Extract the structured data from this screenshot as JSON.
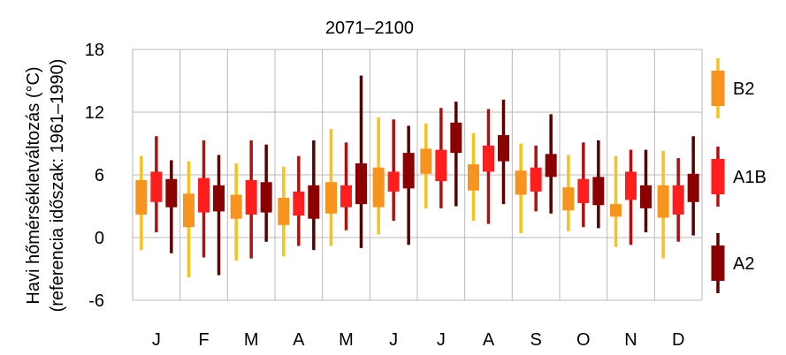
{
  "chart_data": {
    "type": "box",
    "title": "2071–2100",
    "ylabel_line1": "Havi hőmérsékletváltozás (°C)",
    "ylabel_line2": "(referencia időszak: 1961–1990)",
    "ylim": [
      -6,
      18
    ],
    "yticks": [
      "18",
      "12",
      "6",
      "0",
      "-6"
    ],
    "categories": [
      "J",
      "F",
      "M",
      "A",
      "M",
      "J",
      "J",
      "A",
      "S",
      "O",
      "N",
      "D"
    ],
    "grid": true,
    "legend_position": "right",
    "series": [
      {
        "name": "B2",
        "color": "#f7941d",
        "whisker_color": "#f6c21e",
        "box": [
          [
            2.2,
            5.5
          ],
          [
            1.0,
            4.2
          ],
          [
            1.8,
            4.1
          ],
          [
            1.2,
            3.8
          ],
          [
            2.3,
            5.3
          ],
          [
            2.9,
            6.7
          ],
          [
            6.1,
            8.5
          ],
          [
            4.5,
            7.0
          ],
          [
            4.1,
            6.4
          ],
          [
            2.6,
            4.8
          ],
          [
            2.0,
            3.2
          ],
          [
            1.9,
            5.0
          ]
        ],
        "whisker": [
          [
            -1.2,
            7.8
          ],
          [
            -3.8,
            7.3
          ],
          [
            -2.2,
            7.1
          ],
          [
            -1.8,
            6.8
          ],
          [
            -0.8,
            10.4
          ],
          [
            0.3,
            11.5
          ],
          [
            2.8,
            10.9
          ],
          [
            1.6,
            10.0
          ],
          [
            0.4,
            9.0
          ],
          [
            0.6,
            7.9
          ],
          [
            -0.9,
            7.8
          ],
          [
            -2.0,
            8.3
          ]
        ]
      },
      {
        "name": "A1B",
        "color": "#ff1e1e",
        "whisker_color": "#b01010",
        "box": [
          [
            3.4,
            6.3
          ],
          [
            2.4,
            5.7
          ],
          [
            2.2,
            5.5
          ],
          [
            2.1,
            4.4
          ],
          [
            2.9,
            5.0
          ],
          [
            4.4,
            6.3
          ],
          [
            5.4,
            8.4
          ],
          [
            6.3,
            8.8
          ],
          [
            4.4,
            6.7
          ],
          [
            3.3,
            5.6
          ],
          [
            3.6,
            6.3
          ],
          [
            2.2,
            5.0
          ]
        ],
        "whisker": [
          [
            0.5,
            9.7
          ],
          [
            -1.9,
            9.3
          ],
          [
            -2.0,
            9.3
          ],
          [
            -0.8,
            7.8
          ],
          [
            0.7,
            9.1
          ],
          [
            1.6,
            11.3
          ],
          [
            2.8,
            12.4
          ],
          [
            1.3,
            12.3
          ],
          [
            2.5,
            8.8
          ],
          [
            1.0,
            9.1
          ],
          [
            -0.7,
            8.4
          ],
          [
            -0.4,
            7.6
          ]
        ]
      },
      {
        "name": "A2",
        "color": "#8b0000",
        "whisker_color": "#5a0000",
        "box": [
          [
            2.9,
            5.6
          ],
          [
            2.5,
            5.0
          ],
          [
            2.4,
            5.3
          ],
          [
            1.8,
            5.0
          ],
          [
            3.2,
            7.1
          ],
          [
            4.7,
            8.1
          ],
          [
            8.1,
            11.0
          ],
          [
            7.3,
            9.8
          ],
          [
            5.8,
            8.0
          ],
          [
            3.1,
            5.8
          ],
          [
            2.8,
            5.0
          ],
          [
            3.4,
            6.1
          ]
        ],
        "whisker": [
          [
            -1.5,
            7.4
          ],
          [
            -3.6,
            7.9
          ],
          [
            -0.4,
            8.9
          ],
          [
            -1.2,
            9.3
          ],
          [
            -1.0,
            15.5
          ],
          [
            -0.7,
            10.7
          ],
          [
            3.0,
            13.0
          ],
          [
            3.2,
            13.2
          ],
          [
            2.3,
            11.8
          ],
          [
            0.9,
            9.3
          ],
          [
            0.5,
            8.4
          ],
          [
            0.2,
            9.7
          ]
        ]
      }
    ]
  }
}
